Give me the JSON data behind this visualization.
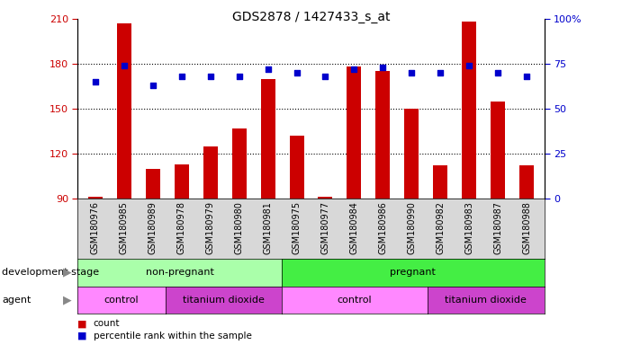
{
  "title": "GDS2878 / 1427433_s_at",
  "samples": [
    "GSM180976",
    "GSM180985",
    "GSM180989",
    "GSM180978",
    "GSM180979",
    "GSM180980",
    "GSM180981",
    "GSM180975",
    "GSM180977",
    "GSM180984",
    "GSM180986",
    "GSM180990",
    "GSM180982",
    "GSM180983",
    "GSM180987",
    "GSM180988"
  ],
  "counts": [
    91,
    207,
    110,
    113,
    125,
    137,
    170,
    132,
    91,
    178,
    175,
    150,
    112,
    208,
    155,
    112
  ],
  "percentiles": [
    65,
    74,
    63,
    68,
    68,
    68,
    72,
    70,
    68,
    72,
    73,
    70,
    70,
    74,
    70,
    68
  ],
  "bar_color": "#cc0000",
  "dot_color": "#0000cc",
  "ymin": 90,
  "ymax": 210,
  "yticks": [
    90,
    120,
    150,
    180,
    210
  ],
  "ytick_labels": [
    "90",
    "120",
    "150",
    "180",
    "210"
  ],
  "y2ticks": [
    0,
    25,
    50,
    75,
    100
  ],
  "y2tick_labels": [
    "0",
    "25",
    "50",
    "75",
    "100%"
  ],
  "gridlines": [
    120,
    150,
    180
  ],
  "groups": [
    {
      "label": "non-pregnant",
      "start": 0,
      "end": 7,
      "color": "#aaffaa"
    },
    {
      "label": "pregnant",
      "start": 7,
      "end": 16,
      "color": "#44ee44"
    }
  ],
  "agents": [
    {
      "label": "control",
      "start": 0,
      "end": 3,
      "color": "#ff88ff"
    },
    {
      "label": "titanium dioxide",
      "start": 3,
      "end": 7,
      "color": "#cc44cc"
    },
    {
      "label": "control",
      "start": 7,
      "end": 12,
      "color": "#ff88ff"
    },
    {
      "label": "titanium dioxide",
      "start": 12,
      "end": 16,
      "color": "#cc44cc"
    }
  ],
  "dev_stage_label": "development stage",
  "agent_label": "agent",
  "legend_count": "count",
  "legend_pct": "percentile rank within the sample",
  "axis_label_color_left": "#cc0000",
  "axis_label_color_right": "#0000cc",
  "xtick_bg": "#d8d8d8",
  "bar_width": 0.5
}
